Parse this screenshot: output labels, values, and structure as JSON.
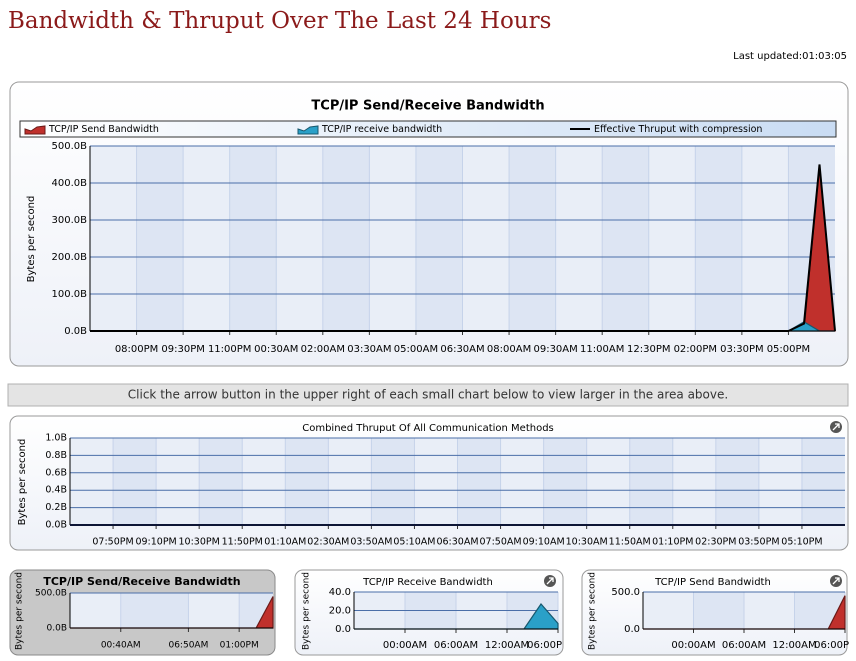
{
  "header": {
    "title": "Bandwidth & Thruput Over The Last 24 Hours",
    "last_updated": "Last updated:01:03:05"
  },
  "instruction": "Click the arrow button in the upper right of each small chart below to view larger in the area above.",
  "chart_data": [
    {
      "type": "area",
      "title": "TCP/IP Send/Receive Bandwidth",
      "ylabel": "Bytes per second",
      "legend": true,
      "grid": true,
      "categories": [
        null,
        null,
        null,
        "08:00PM",
        null,
        null,
        "09:30PM",
        null,
        null,
        "11:00PM",
        null,
        null,
        "00:30AM",
        null,
        null,
        "02:00AM",
        null,
        null,
        "03:30AM",
        null,
        null,
        "05:00AM",
        null,
        null,
        "06:30AM",
        null,
        null,
        "08:00AM",
        null,
        null,
        "09:30AM",
        null,
        null,
        "11:00AM",
        null,
        null,
        "12:30PM",
        null,
        null,
        "02:00PM",
        null,
        null,
        "03:30PM",
        null,
        null,
        "05:00PM",
        null,
        null,
        null
      ],
      "ylim": [
        0,
        500
      ],
      "yticks": [
        {
          "value": 0,
          "label": "0.0B"
        },
        {
          "value": 100,
          "label": "100.0B"
        },
        {
          "value": 200,
          "label": "200.0B"
        },
        {
          "value": 300,
          "label": "300.0B"
        },
        {
          "value": 400,
          "label": "400.0B"
        },
        {
          "value": 500,
          "label": "500.0B"
        }
      ],
      "series": [
        {
          "name": "TCP/IP Send Bandwidth",
          "color": "#c0302c",
          "kind": "area",
          "values": [
            0,
            0,
            0,
            0,
            0,
            0,
            0,
            0,
            0,
            0,
            0,
            0,
            0,
            0,
            0,
            0,
            0,
            0,
            0,
            0,
            0,
            0,
            0,
            0,
            0,
            0,
            0,
            0,
            0,
            0,
            0,
            0,
            0,
            0,
            0,
            0,
            0,
            0,
            0,
            0,
            0,
            0,
            0,
            0,
            0,
            0,
            0,
            450,
            0
          ]
        },
        {
          "name": "TCP/IP receive bandwidth",
          "color": "#2aa0c8",
          "kind": "area",
          "values": [
            0,
            0,
            0,
            0,
            0,
            0,
            0,
            0,
            0,
            0,
            0,
            0,
            0,
            0,
            0,
            0,
            0,
            0,
            0,
            0,
            0,
            0,
            0,
            0,
            0,
            0,
            0,
            0,
            0,
            0,
            0,
            0,
            0,
            0,
            0,
            0,
            0,
            0,
            0,
            0,
            0,
            0,
            0,
            0,
            0,
            0,
            25,
            0,
            0
          ]
        },
        {
          "name": "Effective Thruput with compression",
          "color": "#000000",
          "kind": "line",
          "values": [
            0,
            0,
            0,
            0,
            0,
            0,
            0,
            0,
            0,
            0,
            0,
            0,
            0,
            0,
            0,
            0,
            0,
            0,
            0,
            0,
            0,
            0,
            0,
            0,
            0,
            0,
            0,
            0,
            0,
            0,
            0,
            0,
            0,
            0,
            0,
            0,
            0,
            0,
            0,
            0,
            0,
            0,
            0,
            0,
            0,
            0,
            20,
            450,
            0
          ]
        }
      ]
    },
    {
      "type": "line",
      "title": "Combined Thruput Of All Communication Methods",
      "ylabel": "Bytes per second",
      "grid": true,
      "categories": [
        null,
        "07:50PM",
        "09:10PM",
        "10:30PM",
        "11:50PM",
        "01:10AM",
        "02:30AM",
        "03:50AM",
        "05:10AM",
        "06:30AM",
        "07:50AM",
        "09:10AM",
        "10:30AM",
        "11:50AM",
        "01:10PM",
        "02:30PM",
        "03:50PM",
        "05:10PM",
        null
      ],
      "ylim": [
        0,
        1
      ],
      "yticks": [
        {
          "value": 0,
          "label": "0.0B"
        },
        {
          "value": 0.2,
          "label": "0.2B"
        },
        {
          "value": 0.4,
          "label": "0.4B"
        },
        {
          "value": 0.6,
          "label": "0.6B"
        },
        {
          "value": 0.8,
          "label": "0.8B"
        },
        {
          "value": 1,
          "label": "1.0B"
        }
      ],
      "series": [
        {
          "color": "#1a2a6a",
          "kind": "line",
          "values": [
            0,
            0,
            0,
            0,
            0,
            0,
            0,
            0,
            0,
            0,
            0,
            0,
            0,
            0,
            0,
            0,
            0,
            0,
            0
          ]
        }
      ]
    },
    {
      "type": "area",
      "title": "TCP/IP Send/Receive Bandwidth",
      "ylabel": "Bytes per second",
      "grid": true,
      "categories": [
        null,
        null,
        null,
        "00:40AM",
        null,
        null,
        null,
        "06:50AM",
        null,
        null,
        "01:00PM",
        null,
        null
      ],
      "ylim": [
        0,
        500
      ],
      "yticks": [
        {
          "value": 0,
          "label": "0.0B"
        },
        {
          "value": 500,
          "label": "500.0B"
        }
      ],
      "series": [
        {
          "color": "#c0302c",
          "kind": "area",
          "values": [
            0,
            0,
            0,
            0,
            0,
            0,
            0,
            0,
            0,
            0,
            0,
            0,
            450
          ]
        }
      ]
    },
    {
      "type": "area",
      "title": "TCP/IP Receive Bandwidth",
      "ylabel": "Bytes per second",
      "grid": true,
      "categories": [
        null,
        null,
        null,
        "00:00AM",
        null,
        null,
        "06:00AM",
        null,
        null,
        "12:00AM",
        null,
        null,
        "06:00P"
      ],
      "ylim": [
        0,
        40
      ],
      "yticks": [
        {
          "value": 0,
          "label": "0.0"
        },
        {
          "value": 20,
          "label": "20.0"
        },
        {
          "value": 40,
          "label": "40.0"
        }
      ],
      "series": [
        {
          "color": "#2aa0c8",
          "kind": "area",
          "values": [
            0,
            0,
            0,
            0,
            0,
            0,
            0,
            0,
            0,
            0,
            0,
            27,
            6
          ]
        }
      ]
    },
    {
      "type": "area",
      "title": "TCP/IP Send Bandwidth",
      "ylabel": "Bytes per second",
      "grid": true,
      "categories": [
        null,
        null,
        null,
        "00:00AM",
        null,
        null,
        "06:00AM",
        null,
        null,
        "12:00AM",
        null,
        null,
        "06:00P"
      ],
      "ylim": [
        0,
        500
      ],
      "yticks": [
        {
          "value": 0,
          "label": "0.0"
        },
        {
          "value": 500,
          "label": "500.0"
        }
      ],
      "series": [
        {
          "color": "#c0302c",
          "kind": "area",
          "values": [
            0,
            0,
            0,
            0,
            0,
            0,
            0,
            0,
            0,
            0,
            0,
            0,
            450
          ]
        }
      ]
    }
  ]
}
